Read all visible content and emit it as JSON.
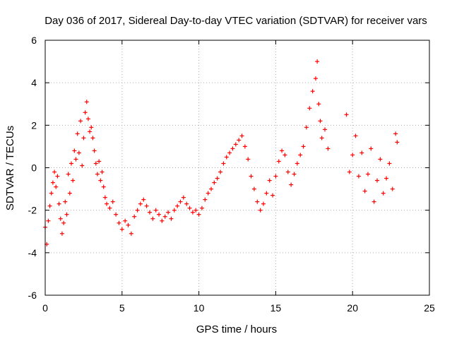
{
  "chart_data": {
    "type": "scatter",
    "title": "Day 036 of 2017, Sidereal Day-to-day VTEC variation (SDTVAR) for receiver vars",
    "xlabel": "GPS time / hours",
    "ylabel": "SDTVAR / TECUs",
    "xlim": [
      0,
      25
    ],
    "ylim": [
      -6,
      6
    ],
    "xticks": [
      "0",
      "5",
      "10",
      "15",
      "20",
      "25"
    ],
    "yticks": [
      "-6",
      "-4",
      "-2",
      "0",
      "2",
      "4",
      "6"
    ],
    "grid": true,
    "marker": "plus",
    "point_color": "#ff0000",
    "series": [
      {
        "name": "vars",
        "x": [
          0.0,
          0.1,
          0.2,
          0.3,
          0.4,
          0.5,
          0.6,
          0.7,
          0.8,
          0.9,
          1.0,
          1.1,
          1.2,
          1.3,
          1.4,
          1.5,
          1.6,
          1.7,
          1.8,
          1.9,
          2.0,
          2.1,
          2.2,
          2.3,
          2.4,
          2.5,
          2.6,
          2.7,
          2.8,
          2.9,
          3.0,
          3.1,
          3.2,
          3.3,
          3.4,
          3.5,
          3.6,
          3.7,
          3.8,
          3.9,
          4.0,
          4.2,
          4.4,
          4.6,
          4.8,
          5.0,
          5.2,
          5.4,
          5.6,
          5.8,
          6.0,
          6.2,
          6.4,
          6.6,
          6.8,
          7.0,
          7.2,
          7.4,
          7.6,
          7.8,
          8.0,
          8.2,
          8.4,
          8.6,
          8.8,
          9.0,
          9.2,
          9.4,
          9.6,
          9.8,
          10.0,
          10.2,
          10.4,
          10.6,
          10.8,
          11.0,
          11.2,
          11.4,
          11.6,
          11.8,
          12.0,
          12.2,
          12.4,
          12.6,
          12.8,
          13.0,
          13.2,
          13.4,
          13.6,
          13.8,
          14.0,
          14.2,
          14.4,
          14.6,
          14.8,
          15.0,
          15.2,
          15.4,
          15.6,
          15.8,
          16.0,
          16.2,
          16.4,
          16.6,
          16.8,
          17.0,
          17.2,
          17.4,
          17.6,
          17.7,
          17.8,
          17.9,
          18.0,
          18.2,
          18.4,
          19.6,
          19.8,
          20.0,
          20.2,
          20.4,
          20.6,
          20.8,
          21.0,
          21.2,
          21.4,
          21.6,
          21.8,
          22.0,
          22.2,
          22.4,
          22.6,
          22.8,
          22.9
        ],
        "y": [
          -2.8,
          -3.6,
          -2.5,
          -1.8,
          -1.2,
          -0.7,
          -0.2,
          -0.9,
          -0.4,
          -1.7,
          -2.4,
          -3.1,
          -2.6,
          -1.6,
          -2.2,
          -0.3,
          -1.2,
          0.2,
          -0.6,
          0.8,
          0.4,
          1.6,
          0.7,
          2.2,
          0.1,
          1.4,
          2.6,
          3.1,
          2.3,
          1.7,
          1.9,
          1.4,
          0.8,
          0.2,
          -0.3,
          0.3,
          -0.6,
          -0.2,
          -0.9,
          -1.4,
          -1.7,
          -1.9,
          -1.6,
          -2.2,
          -2.6,
          -2.9,
          -2.5,
          -2.7,
          -3.1,
          -2.3,
          -2.0,
          -1.7,
          -1.5,
          -1.8,
          -2.1,
          -2.4,
          -2.0,
          -2.2,
          -2.5,
          -2.3,
          -2.1,
          -2.4,
          -2.0,
          -1.8,
          -1.6,
          -1.4,
          -1.7,
          -1.9,
          -2.1,
          -2.0,
          -2.2,
          -1.9,
          -1.5,
          -1.2,
          -1.0,
          -0.7,
          -0.5,
          -0.2,
          0.2,
          0.5,
          0.7,
          0.9,
          1.1,
          1.3,
          1.5,
          1.0,
          0.4,
          -0.4,
          -1.0,
          -1.6,
          -2.0,
          -1.7,
          -1.2,
          -0.6,
          -1.3,
          -0.4,
          0.3,
          0.8,
          0.6,
          -0.2,
          -0.8,
          -0.3,
          0.2,
          0.6,
          1.0,
          1.9,
          2.8,
          3.6,
          4.2,
          5.0,
          3.0,
          2.2,
          1.4,
          1.8,
          0.9,
          2.5,
          -0.2,
          0.6,
          1.5,
          -0.4,
          0.7,
          -1.1,
          -0.3,
          0.9,
          -1.6,
          -0.6,
          0.4,
          -1.2,
          -0.5,
          0.2,
          -1.0,
          1.6,
          1.2
        ]
      }
    ]
  }
}
